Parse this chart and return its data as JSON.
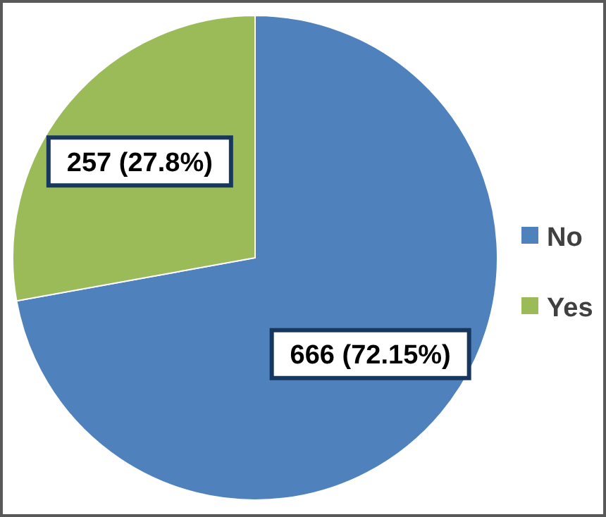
{
  "chart_data": {
    "type": "pie",
    "categories": [
      "No",
      "Yes"
    ],
    "values": [
      666,
      257
    ],
    "colors": [
      "#4f81bd",
      "#9bbb59"
    ],
    "value_labels": [
      "666 (72.15%)",
      "257 (27.8%)"
    ],
    "legend": "right"
  }
}
